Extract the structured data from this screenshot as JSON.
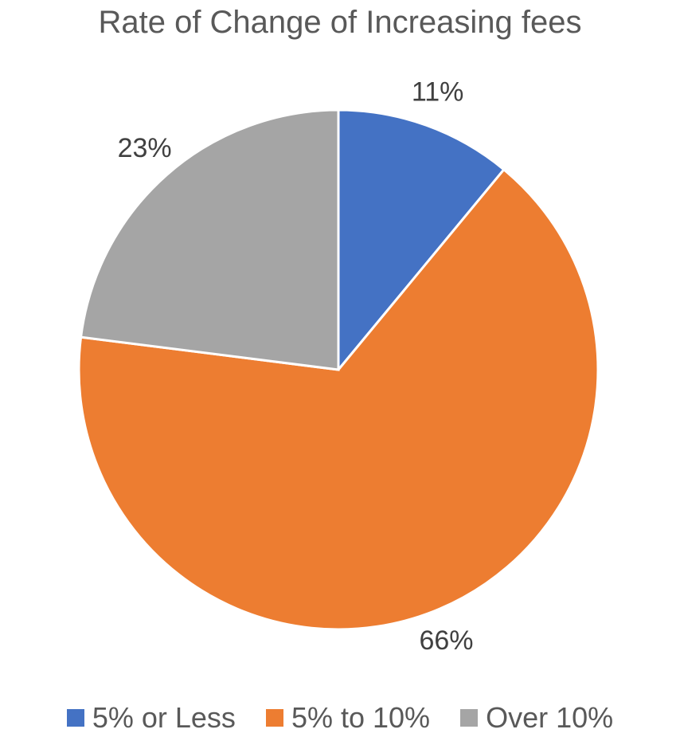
{
  "chart_data": {
    "type": "pie",
    "title": "Rate of Change of Increasing fees",
    "slices": [
      {
        "label": "5% or Less",
        "value": 11,
        "display": "11%",
        "color": "#4472C4"
      },
      {
        "label": "5% to 10%",
        "value": 66,
        "display": "66%",
        "color": "#ED7D31"
      },
      {
        "label": "Over 10%",
        "value": 23,
        "display": "23%",
        "color": "#A5A5A5"
      }
    ],
    "legend_position": "bottom",
    "start_angle": "12 o'clock",
    "direction": "clockwise"
  }
}
